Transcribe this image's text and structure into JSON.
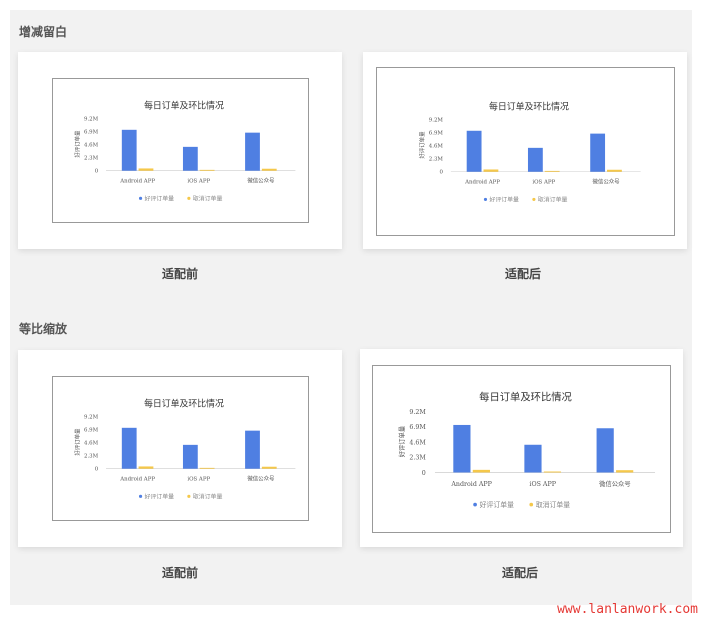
{
  "sections": [
    {
      "title": "增减留白",
      "captions": [
        "适配前",
        "适配后"
      ]
    },
    {
      "title": "等比缩放",
      "captions": [
        "适配前",
        "适配后"
      ]
    }
  ],
  "chart_data": {
    "type": "bar",
    "title": "每日订单及环比情况",
    "ylabel": "好评订单量",
    "categories": [
      "Android APP",
      "iOS APP",
      "微信公众号"
    ],
    "yticks": [
      "0",
      "2.3M",
      "4.6M",
      "6.9M",
      "9.2M"
    ],
    "ylim": [
      0,
      9.2
    ],
    "series": [
      {
        "name": "好评订单量",
        "values": [
          7.2,
          4.2,
          6.7
        ],
        "color": "#4f7fe2"
      },
      {
        "name": "取消订单量",
        "values": [
          0.4,
          0.15,
          0.35
        ],
        "color": "#f5c84a"
      }
    ],
    "legend": "bottom",
    "grid": false
  },
  "watermark": "www.lanlanwork.com"
}
